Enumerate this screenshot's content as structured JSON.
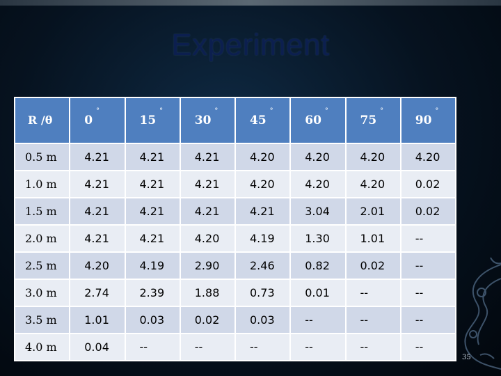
{
  "slide": {
    "title": "Experiment",
    "page_number": "35"
  },
  "table": {
    "header_first": "R /θ",
    "degree_symbol": "°",
    "angles": [
      "0",
      "15",
      "30",
      "45",
      "60",
      "75",
      "90"
    ],
    "rows": [
      {
        "label": "0.5 m",
        "values": [
          "4.21",
          "4.21",
          "4.21",
          "4.20",
          "4.20",
          "4.20",
          "4.20"
        ]
      },
      {
        "label": "1.0 m",
        "values": [
          "4.21",
          "4.21",
          "4.21",
          "4.20",
          "4.20",
          "4.20",
          "0.02"
        ]
      },
      {
        "label": "1.5 m",
        "values": [
          "4.21",
          "4.21",
          "4.21",
          "4.21",
          "3.04",
          "2.01",
          "0.02"
        ]
      },
      {
        "label": "2.0 m",
        "values": [
          "4.21",
          "4.21",
          "4.20",
          "4.19",
          "1.30",
          "1.01",
          "--"
        ]
      },
      {
        "label": "2.5 m",
        "values": [
          "4.20",
          "4.19",
          "2.90",
          "2.46",
          "0.82",
          "0.02",
          "--"
        ]
      },
      {
        "label": "3.0 m",
        "values": [
          "2.74",
          "2.39",
          "1.88",
          "0.73",
          "0.01",
          "--",
          "--"
        ]
      },
      {
        "label": "3.5 m",
        "values": [
          "1.01",
          "0.03",
          "0.02",
          "0.03",
          "--",
          "--",
          "--"
        ]
      },
      {
        "label": "4.0 m",
        "values": [
          "0.04",
          "--",
          "--",
          "--",
          "--",
          "--",
          "--"
        ]
      }
    ]
  },
  "colors": {
    "header_bg": "#4f7fbf",
    "row_odd": "#d0d8e8",
    "row_even": "#e9edf4",
    "title": "#0c1f4f"
  }
}
